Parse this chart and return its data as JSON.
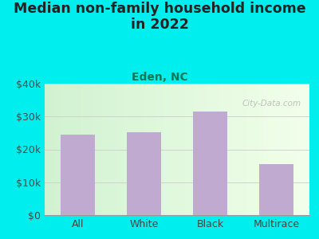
{
  "title": "Median non-family household income\nin 2022",
  "subtitle": "Eden, NC",
  "categories": [
    "All",
    "White",
    "Black",
    "Multirace"
  ],
  "values": [
    24500,
    25200,
    31500,
    15500
  ],
  "bar_color": "#c0aad0",
  "background_outer": "#00EEEE",
  "background_inner_left": "#d8f0d0",
  "background_inner_right": "#f0f8e8",
  "title_fontsize": 12.5,
  "subtitle_fontsize": 10,
  "subtitle_color": "#007755",
  "title_color": "#222222",
  "tick_color": "#444444",
  "ylim": [
    0,
    40000
  ],
  "yticks": [
    0,
    10000,
    20000,
    30000,
    40000
  ],
  "ytick_labels": [
    "$0",
    "$10k",
    "$20k",
    "$30k",
    "$40k"
  ],
  "watermark": "City-Data.com"
}
